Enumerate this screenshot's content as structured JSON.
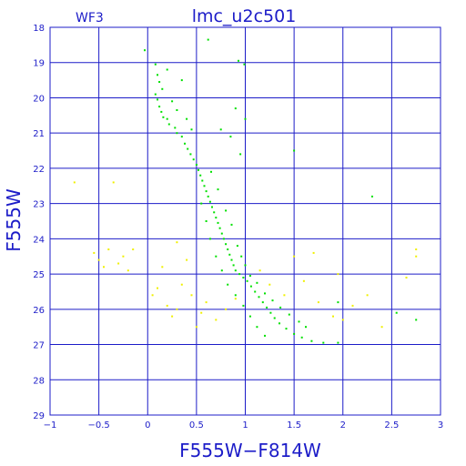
{
  "chart_data": {
    "type": "scatter",
    "title": "lmc_u2c501",
    "subtitle": "WF3",
    "xlabel": "F555W−F814W",
    "ylabel": "F555W",
    "xlim": [
      -1,
      3
    ],
    "ylim": [
      29,
      18
    ],
    "y_inverted": true,
    "grid": true,
    "x_ticks": [
      "−1",
      "−0.5",
      "0",
      "0.5",
      "1",
      "1.5",
      "2",
      "2.5",
      "3"
    ],
    "x_tick_values": [
      -1,
      -0.5,
      0,
      0.5,
      1,
      1.5,
      2,
      2.5,
      3
    ],
    "y_ticks": [
      "18",
      "19",
      "20",
      "21",
      "22",
      "23",
      "24",
      "25",
      "26",
      "27",
      "28",
      "29"
    ],
    "y_tick_values": [
      18,
      19,
      20,
      21,
      22,
      23,
      24,
      25,
      26,
      27,
      28,
      29
    ],
    "series": [
      {
        "color": "#00e000",
        "points": [
          [
            -0.03,
            18.65
          ],
          [
            0.62,
            18.35
          ],
          [
            0.93,
            18.95
          ],
          [
            0.99,
            19.05
          ],
          [
            0.08,
            19.05
          ],
          [
            0.1,
            19.35
          ],
          [
            0.12,
            19.55
          ],
          [
            0.15,
            19.75
          ],
          [
            0.08,
            19.9
          ],
          [
            0.1,
            20.05
          ],
          [
            0.12,
            20.25
          ],
          [
            0.14,
            20.4
          ],
          [
            0.16,
            20.55
          ],
          [
            0.2,
            20.6
          ],
          [
            0.22,
            20.75
          ],
          [
            0.28,
            20.85
          ],
          [
            0.3,
            21.0
          ],
          [
            0.35,
            21.1
          ],
          [
            0.38,
            21.3
          ],
          [
            0.41,
            21.45
          ],
          [
            0.44,
            21.6
          ],
          [
            0.47,
            21.75
          ],
          [
            0.5,
            21.9
          ],
          [
            0.52,
            22.05
          ],
          [
            0.54,
            22.2
          ],
          [
            0.56,
            22.35
          ],
          [
            0.58,
            22.5
          ],
          [
            0.6,
            22.65
          ],
          [
            0.62,
            22.8
          ],
          [
            0.64,
            22.95
          ],
          [
            0.66,
            23.1
          ],
          [
            0.68,
            23.25
          ],
          [
            0.7,
            23.4
          ],
          [
            0.72,
            23.55
          ],
          [
            0.74,
            23.7
          ],
          [
            0.76,
            23.85
          ],
          [
            0.78,
            24.0
          ],
          [
            0.8,
            24.15
          ],
          [
            0.82,
            24.3
          ],
          [
            0.84,
            24.45
          ],
          [
            0.86,
            24.6
          ],
          [
            0.88,
            24.75
          ],
          [
            0.9,
            24.9
          ],
          [
            0.94,
            25.0
          ],
          [
            0.98,
            25.1
          ],
          [
            1.02,
            25.2
          ],
          [
            1.06,
            25.35
          ],
          [
            1.1,
            25.5
          ],
          [
            1.14,
            25.65
          ],
          [
            1.18,
            25.8
          ],
          [
            1.22,
            25.95
          ],
          [
            1.26,
            26.1
          ],
          [
            1.3,
            26.25
          ],
          [
            1.35,
            26.4
          ],
          [
            1.42,
            26.55
          ],
          [
            1.5,
            26.7
          ],
          [
            1.58,
            26.8
          ],
          [
            1.68,
            26.9
          ],
          [
            1.8,
            26.95
          ],
          [
            1.95,
            26.95
          ],
          [
            0.65,
            22.1
          ],
          [
            0.72,
            22.6
          ],
          [
            0.8,
            23.2
          ],
          [
            0.86,
            23.6
          ],
          [
            0.92,
            24.2
          ],
          [
            0.96,
            24.5
          ],
          [
            1.0,
            24.75
          ],
          [
            1.05,
            25.05
          ],
          [
            1.12,
            25.25
          ],
          [
            1.2,
            25.55
          ],
          [
            1.28,
            25.75
          ],
          [
            1.36,
            25.95
          ],
          [
            1.45,
            26.15
          ],
          [
            1.55,
            26.35
          ],
          [
            1.62,
            26.5
          ],
          [
            0.55,
            23.0
          ],
          [
            0.6,
            23.5
          ],
          [
            0.64,
            24.0
          ],
          [
            0.7,
            24.5
          ],
          [
            0.76,
            24.9
          ],
          [
            0.82,
            25.3
          ],
          [
            0.9,
            25.6
          ],
          [
            0.98,
            25.9
          ],
          [
            1.05,
            26.2
          ],
          [
            1.12,
            26.5
          ],
          [
            1.2,
            26.75
          ],
          [
            0.9,
            20.3
          ],
          [
            1.0,
            20.6
          ],
          [
            0.85,
            21.1
          ],
          [
            0.95,
            21.6
          ],
          [
            0.75,
            20.9
          ],
          [
            1.5,
            21.5
          ],
          [
            2.3,
            22.8
          ],
          [
            1.95,
            25.8
          ],
          [
            2.55,
            26.1
          ],
          [
            2.75,
            26.3
          ],
          [
            0.25,
            20.1
          ],
          [
            0.3,
            20.35
          ],
          [
            0.4,
            20.6
          ],
          [
            0.45,
            20.9
          ],
          [
            0.35,
            19.5
          ],
          [
            0.2,
            19.2
          ]
        ]
      },
      {
        "color": "#f0f000",
        "points": [
          [
            -0.75,
            22.4
          ],
          [
            -0.35,
            22.4
          ],
          [
            -0.55,
            24.4
          ],
          [
            -0.5,
            24.6
          ],
          [
            -0.45,
            24.8
          ],
          [
            -0.4,
            24.3
          ],
          [
            -0.3,
            24.7
          ],
          [
            -0.25,
            24.5
          ],
          [
            -0.2,
            24.9
          ],
          [
            -0.15,
            24.3
          ],
          [
            0.1,
            25.4
          ],
          [
            0.05,
            25.6
          ],
          [
            0.2,
            25.9
          ],
          [
            0.25,
            26.2
          ],
          [
            0.3,
            26.0
          ],
          [
            0.35,
            25.3
          ],
          [
            0.45,
            25.6
          ],
          [
            0.55,
            26.1
          ],
          [
            0.6,
            25.8
          ],
          [
            0.7,
            26.3
          ],
          [
            0.8,
            26.0
          ],
          [
            0.9,
            25.7
          ],
          [
            1.15,
            24.9
          ],
          [
            1.25,
            25.3
          ],
          [
            1.4,
            25.6
          ],
          [
            1.6,
            25.2
          ],
          [
            1.75,
            25.8
          ],
          [
            1.9,
            26.2
          ],
          [
            2.0,
            26.3
          ],
          [
            2.1,
            25.9
          ],
          [
            2.4,
            26.5
          ],
          [
            2.65,
            25.1
          ],
          [
            2.75,
            24.3
          ],
          [
            2.75,
            24.5
          ],
          [
            1.5,
            24.5
          ],
          [
            1.7,
            24.4
          ],
          [
            0.3,
            24.1
          ],
          [
            0.4,
            24.6
          ],
          [
            0.15,
            24.8
          ],
          [
            1.95,
            25.0
          ],
          [
            2.25,
            25.6
          ],
          [
            0.5,
            26.5
          ]
        ]
      }
    ]
  }
}
